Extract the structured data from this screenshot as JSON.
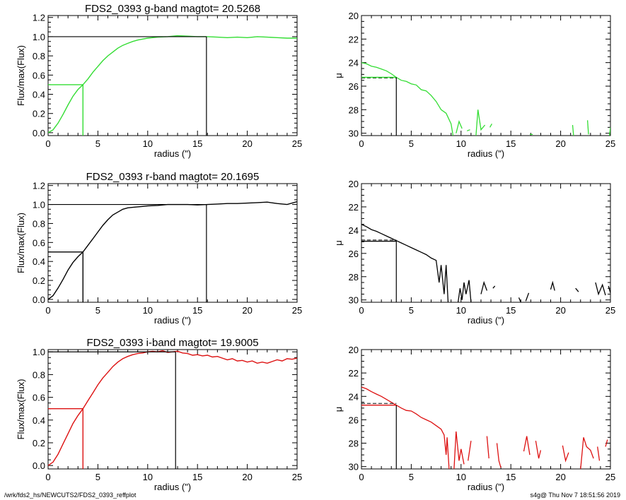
{
  "footer": {
    "path": "/wrk/fds2_hs/NEWCUTS2/FDS2_0393_reffplot",
    "stamp": "s4g@  Thu Nov  7 18:51:56 2019"
  },
  "colors": {
    "g": "#33dd33",
    "r": "#000000",
    "i": "#dd1111",
    "axes": "#000000"
  },
  "chart_data": [
    {
      "type": "line",
      "panel": "growth-curve-g",
      "title": "FDS2_0393 g-band  magtot=     20.5268",
      "xlabel": "radius (\")",
      "ylabel": "Flux/max(Flux)",
      "xlim": [
        0,
        25
      ],
      "ylim": [
        -0.03,
        1.22
      ],
      "xticks": [
        0,
        5,
        10,
        15,
        20,
        25
      ],
      "yticks": [
        0.0,
        0.2,
        0.4,
        0.6,
        0.8,
        1.0,
        1.2
      ],
      "ytick_labels": [
        "0.0",
        "0.2",
        "0.4",
        "0.6",
        "0.8",
        "1.0",
        "1.2"
      ],
      "color": "#33dd33",
      "x": [
        0,
        0.5,
        1,
        1.5,
        2,
        2.5,
        3,
        3.5,
        4,
        4.5,
        5,
        5.5,
        6,
        6.5,
        7,
        7.5,
        8,
        8.5,
        9,
        9.5,
        10,
        11,
        12,
        13,
        14,
        15,
        16,
        17,
        18,
        19,
        20,
        21,
        22,
        23,
        24,
        25
      ],
      "y": [
        0,
        0.03,
        0.1,
        0.19,
        0.29,
        0.38,
        0.45,
        0.5,
        0.56,
        0.63,
        0.69,
        0.75,
        0.8,
        0.84,
        0.88,
        0.91,
        0.93,
        0.95,
        0.965,
        0.975,
        0.985,
        0.995,
        1.0,
        1.01,
        1.005,
        1.0,
        1.0,
        0.995,
        0.99,
        0.995,
        0.99,
        1.0,
        0.995,
        0.99,
        0.985,
        0.985
      ],
      "half_light_radius": 3.5,
      "total_radius": 15.9
    },
    {
      "type": "line",
      "panel": "profile-g",
      "title": "",
      "xlabel": "radius (\")",
      "ylabel": "μ",
      "xlim": [
        0,
        25
      ],
      "ylim": [
        30.2,
        20
      ],
      "xticks": [
        0,
        5,
        10,
        15,
        20,
        25
      ],
      "yticks": [
        20,
        22,
        24,
        26,
        28,
        30
      ],
      "color": "#33dd33",
      "segments": [
        [
          [
            0,
            24.0
          ],
          [
            0.5,
            24.1
          ],
          [
            1,
            24.3
          ],
          [
            1.5,
            24.4
          ],
          [
            2,
            24.55
          ],
          [
            2.5,
            24.7
          ],
          [
            3,
            24.95
          ],
          [
            3.5,
            25.25
          ],
          [
            4,
            25.5
          ],
          [
            4.5,
            25.6
          ],
          [
            5,
            25.8
          ],
          [
            5.5,
            25.9
          ],
          [
            6,
            26.3
          ],
          [
            6.5,
            26.4
          ],
          [
            7,
            26.8
          ],
          [
            7.5,
            27.3
          ],
          [
            8,
            28.0
          ],
          [
            8.5,
            28.3
          ],
          [
            9,
            29.2
          ],
          [
            9.2,
            30.2
          ]
        ],
        [
          [
            9.5,
            30.0
          ],
          [
            9.8,
            29.0
          ],
          [
            10.1,
            29.6
          ]
        ],
        [
          [
            10.6,
            29.8
          ],
          [
            10.9,
            29.7
          ]
        ],
        [
          [
            11.5,
            30.2
          ],
          [
            11.7,
            28.0
          ],
          [
            12.0,
            29.7
          ],
          [
            12.4,
            29.3
          ]
        ],
        [
          [
            12.9,
            29.5
          ],
          [
            13.1,
            29.2
          ]
        ],
        [
          [
            16.9,
            30.1
          ],
          [
            17.2,
            30.1
          ]
        ],
        [
          [
            21.2,
            29.3
          ],
          [
            21.3,
            30.2
          ]
        ],
        [
          [
            22.7,
            28.9
          ],
          [
            22.8,
            30.1
          ]
        ],
        [
          [
            24.9,
            30.2
          ],
          [
            25.0,
            29.5
          ]
        ]
      ],
      "mu_eff": 25.25,
      "mu_eff_ref": 25.3,
      "r_eff": 3.5
    },
    {
      "type": "line",
      "panel": "growth-curve-r",
      "title": "FDS2_0393 r-band  magtot=     20.1695",
      "xlabel": "radius (\")",
      "ylabel": "Flux/max(Flux)",
      "xlim": [
        0,
        25
      ],
      "ylim": [
        -0.03,
        1.22
      ],
      "xticks": [
        0,
        5,
        10,
        15,
        20,
        25
      ],
      "yticks": [
        0.0,
        0.2,
        0.4,
        0.6,
        0.8,
        1.0,
        1.2
      ],
      "ytick_labels": [
        "0.0",
        "0.2",
        "0.4",
        "0.6",
        "0.8",
        "1.0",
        "1.2"
      ],
      "color": "#000000",
      "x": [
        0,
        0.5,
        1,
        1.5,
        2,
        2.5,
        3,
        3.5,
        4,
        4.5,
        5,
        5.5,
        6,
        6.5,
        7,
        7.5,
        8,
        8.5,
        9,
        9.5,
        10,
        11,
        12,
        13,
        14,
        15,
        16,
        17,
        18,
        19,
        20,
        21,
        22,
        23,
        24,
        25
      ],
      "y": [
        0,
        0.04,
        0.12,
        0.21,
        0.31,
        0.39,
        0.45,
        0.5,
        0.57,
        0.64,
        0.71,
        0.78,
        0.84,
        0.89,
        0.92,
        0.95,
        0.965,
        0.97,
        0.975,
        0.98,
        0.985,
        0.99,
        1.0,
        1.0,
        1.0,
        0.995,
        1.0,
        1.005,
        1.01,
        1.01,
        1.015,
        1.02,
        1.025,
        1.01,
        1.0,
        1.03
      ],
      "half_light_radius": 3.5,
      "total_radius": 15.9
    },
    {
      "type": "line",
      "panel": "profile-r",
      "title": "",
      "xlabel": "radius (\")",
      "ylabel": "μ",
      "xlim": [
        0,
        25
      ],
      "ylim": [
        30.2,
        20
      ],
      "xticks": [
        0,
        5,
        10,
        15,
        20,
        25
      ],
      "yticks": [
        20,
        22,
        24,
        26,
        28,
        30
      ],
      "color": "#000000",
      "segments": [
        [
          [
            0,
            23.5
          ],
          [
            0.5,
            23.7
          ],
          [
            1,
            23.95
          ],
          [
            1.5,
            24.1
          ],
          [
            2,
            24.3
          ],
          [
            2.5,
            24.5
          ],
          [
            3,
            24.7
          ],
          [
            3.5,
            24.9
          ],
          [
            4,
            25.1
          ],
          [
            4.5,
            25.3
          ],
          [
            5,
            25.5
          ],
          [
            5.5,
            25.7
          ],
          [
            6,
            25.9
          ],
          [
            6.5,
            26.1
          ],
          [
            7,
            26.4
          ],
          [
            7.5,
            26.6
          ],
          [
            7.8,
            28.5
          ],
          [
            8.0,
            27.0
          ],
          [
            8.3,
            29.5
          ],
          [
            8.5,
            27.0
          ],
          [
            8.7,
            30.2
          ]
        ],
        [
          [
            9.7,
            30.2
          ],
          [
            9.9,
            29.0
          ],
          [
            10.1,
            30.0
          ],
          [
            10.3,
            28.5
          ],
          [
            10.5,
            29.5
          ],
          [
            10.8,
            28.3
          ],
          [
            11.0,
            30.2
          ]
        ],
        [
          [
            12.0,
            29.5
          ],
          [
            12.3,
            28.5
          ],
          [
            12.6,
            29.2
          ]
        ],
        [
          [
            13.2,
            29.0
          ],
          [
            13.4,
            28.8
          ]
        ],
        [
          [
            15.8,
            29.8
          ],
          [
            16.0,
            30.2
          ]
        ],
        [
          [
            16.5,
            30.1
          ],
          [
            16.8,
            29.4
          ]
        ],
        [
          [
            19.0,
            29.1
          ],
          [
            19.2,
            28.5
          ],
          [
            19.4,
            29.2
          ]
        ],
        [
          [
            21.5,
            29.0
          ],
          [
            21.8,
            29.3
          ]
        ],
        [
          [
            23.5,
            28.5
          ],
          [
            23.8,
            29.5
          ],
          [
            24.2,
            28.7
          ],
          [
            24.5,
            29.6
          ]
        ],
        [
          [
            24.8,
            28.8
          ],
          [
            25.0,
            29.4
          ]
        ]
      ],
      "mu_eff": 24.95,
      "mu_eff_ref": 24.85,
      "r_eff": 3.5
    },
    {
      "type": "line",
      "panel": "growth-curve-i",
      "title": "FDS2_0393 i-band  magtot=     19.9005",
      "xlabel": "radius (\")",
      "ylabel": "Flux/max(Flux)",
      "xlim": [
        0,
        25
      ],
      "ylim": [
        -0.03,
        1.02
      ],
      "xticks": [
        0,
        5,
        10,
        15,
        20,
        25
      ],
      "yticks": [
        0.0,
        0.2,
        0.4,
        0.6,
        0.8,
        1.0
      ],
      "ytick_labels": [
        "0.0",
        "0.2",
        "0.4",
        "0.6",
        "0.8",
        "1.0"
      ],
      "color": "#dd1111",
      "x": [
        0,
        0.5,
        1,
        1.5,
        2,
        2.5,
        3,
        3.5,
        4,
        4.5,
        5,
        5.5,
        6,
        6.5,
        7,
        7.5,
        8,
        8.5,
        9,
        9.5,
        10,
        10.5,
        11,
        11.5,
        12,
        12.5,
        13,
        13.5,
        14,
        14.5,
        15,
        15.5,
        16,
        16.5,
        17,
        17.5,
        18,
        18.5,
        19,
        19.5,
        20,
        20.5,
        21,
        21.5,
        22,
        22.5,
        23,
        23.5,
        24,
        24.5,
        25
      ],
      "y": [
        0,
        0.03,
        0.1,
        0.19,
        0.28,
        0.37,
        0.44,
        0.5,
        0.57,
        0.64,
        0.71,
        0.77,
        0.82,
        0.87,
        0.91,
        0.94,
        0.96,
        0.975,
        0.985,
        0.99,
        1.0,
        1.005,
        1.0,
        1.01,
        0.995,
        1.0,
        1.005,
        0.99,
        0.985,
        0.97,
        0.975,
        0.965,
        0.97,
        0.955,
        0.96,
        0.945,
        0.93,
        0.94,
        0.92,
        0.925,
        0.91,
        0.92,
        0.9,
        0.91,
        0.9,
        0.915,
        0.93,
        0.92,
        0.94,
        0.935,
        0.945
      ],
      "half_light_radius": 3.5,
      "total_radius": 12.8
    },
    {
      "type": "line",
      "panel": "profile-i",
      "title": "",
      "xlabel": "radius (\")",
      "ylabel": "μ",
      "xlim": [
        0,
        25
      ],
      "ylim": [
        30.2,
        20
      ],
      "xticks": [
        0,
        5,
        10,
        15,
        20,
        25
      ],
      "yticks": [
        20,
        22,
        24,
        26,
        28,
        30
      ],
      "color": "#dd1111",
      "segments": [
        [
          [
            0,
            23.2
          ],
          [
            0.5,
            23.35
          ],
          [
            1,
            23.6
          ],
          [
            1.5,
            23.8
          ],
          [
            2,
            24.0
          ],
          [
            2.5,
            24.25
          ],
          [
            3,
            24.5
          ],
          [
            3.5,
            24.75
          ],
          [
            4,
            25.0
          ],
          [
            4.5,
            25.2
          ],
          [
            5,
            25.25
          ],
          [
            5.5,
            25.5
          ],
          [
            6,
            25.8
          ],
          [
            6.5,
            26.0
          ],
          [
            7,
            26.2
          ],
          [
            7.5,
            26.5
          ],
          [
            8,
            26.8
          ],
          [
            8.3,
            27.3
          ],
          [
            8.5,
            29.0
          ],
          [
            8.6,
            27.5
          ],
          [
            8.8,
            30.2
          ]
        ],
        [
          [
            9.3,
            30.2
          ],
          [
            9.5,
            27.0
          ],
          [
            9.8,
            29.5
          ],
          [
            10.0,
            28.5
          ],
          [
            10.3,
            29.8
          ]
        ],
        [
          [
            10.7,
            29.5
          ],
          [
            11.0,
            27.8
          ]
        ],
        [
          [
            12.6,
            27.4
          ],
          [
            12.8,
            29.3
          ]
        ],
        [
          [
            13.6,
            28.0
          ],
          [
            13.8,
            29.5
          ],
          [
            14.0,
            30.1
          ]
        ],
        [
          [
            16.3,
            28.7
          ],
          [
            16.6,
            27.4
          ],
          [
            16.9,
            29.0
          ]
        ],
        [
          [
            17.5,
            27.8
          ],
          [
            17.8,
            29.3
          ],
          [
            18.0,
            28.6
          ]
        ],
        [
          [
            20.2,
            28.2
          ],
          [
            20.5,
            29.5
          ],
          [
            20.8,
            28.8
          ]
        ],
        [
          [
            22.0,
            30.2
          ],
          [
            22.3,
            27.5
          ],
          [
            22.6,
            28.3
          ],
          [
            23.0,
            28.6
          ],
          [
            23.3,
            29.3
          ]
        ],
        [
          [
            23.7,
            28.3
          ],
          [
            23.9,
            29.5
          ]
        ],
        [
          [
            24.5,
            28.3
          ],
          [
            24.7,
            27.7
          ]
        ]
      ],
      "mu_eff": 24.75,
      "mu_eff_ref": 24.6,
      "r_eff": 3.5
    }
  ]
}
